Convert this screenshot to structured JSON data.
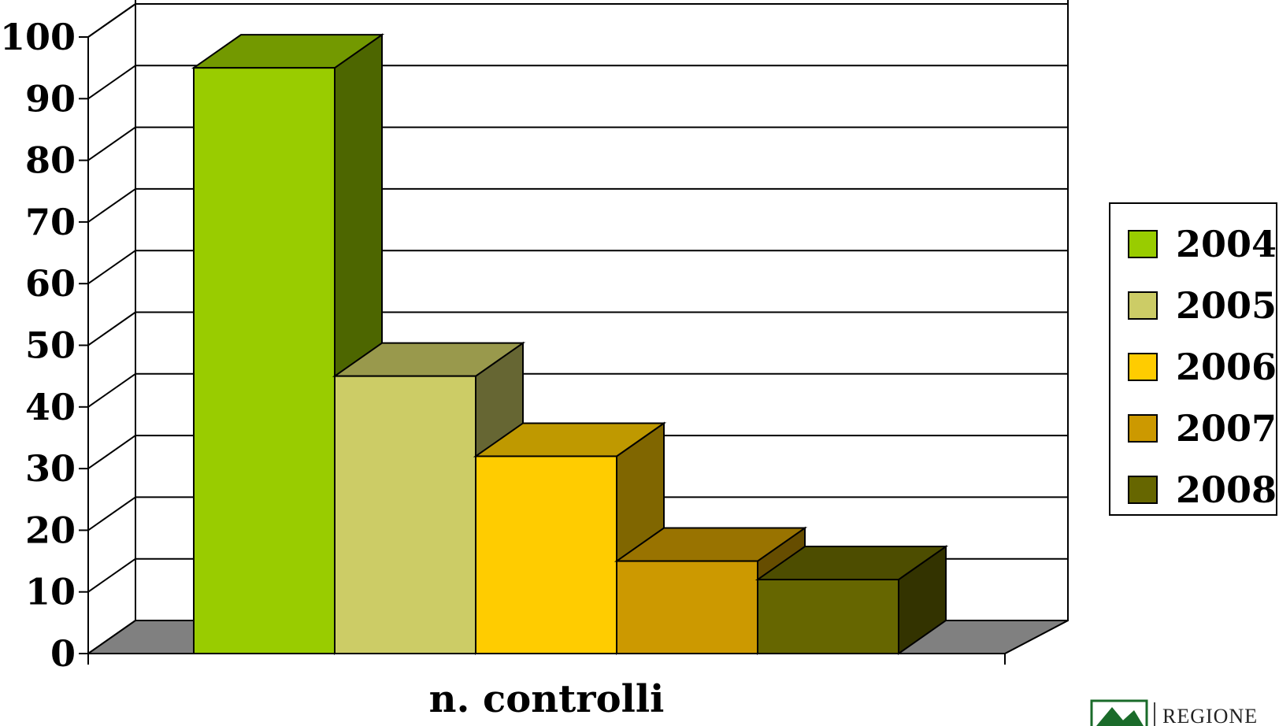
{
  "chart_data": {
    "type": "bar",
    "categories": [
      "n. controlli"
    ],
    "xlabel": "n. controlli",
    "ylabel": "",
    "ylim": [
      0,
      100
    ],
    "yticks": [
      0,
      10,
      20,
      30,
      40,
      50,
      60,
      70,
      80,
      90,
      100
    ],
    "grid": true,
    "legend": "right",
    "three_d": true,
    "series": [
      {
        "name": "2004",
        "values": [
          95
        ],
        "color": "#99CC00",
        "top_color": "#739900",
        "side_color": "#4D6600"
      },
      {
        "name": "2005",
        "values": [
          45
        ],
        "color": "#CCCC66",
        "top_color": "#99994C",
        "side_color": "#666633"
      },
      {
        "name": "2006",
        "values": [
          32
        ],
        "color": "#FFCC00",
        "top_color": "#BF9900",
        "side_color": "#806600"
      },
      {
        "name": "2007",
        "values": [
          15
        ],
        "color": "#CC9900",
        "top_color": "#997300",
        "side_color": "#664D00"
      },
      {
        "name": "2008",
        "values": [
          12
        ],
        "color": "#666600",
        "top_color": "#4D4D00",
        "side_color": "#333300"
      }
    ]
  },
  "logo": {
    "text": "REGIONE"
  }
}
